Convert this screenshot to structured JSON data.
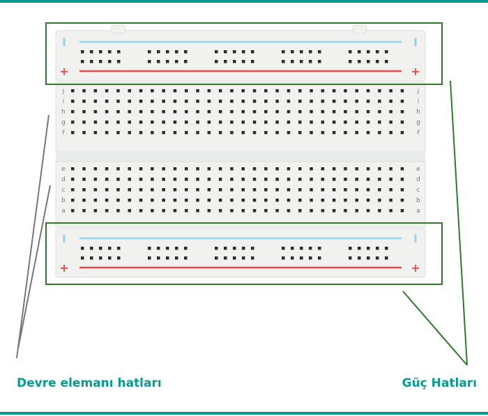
{
  "labels": {
    "circuit_lines": "Devre elemanı hatları",
    "power_lines": "Güç Hatları"
  },
  "rail_symbols": {
    "minus": "I",
    "plus": "+"
  },
  "row_letters_top": [
    "j",
    "i",
    "h",
    "g",
    "f"
  ],
  "row_letters_bottom": [
    "e",
    "d",
    "c",
    "b",
    "a"
  ],
  "colors": {
    "accent": "#079a8e",
    "highlight_box": "#2d7a2d",
    "pointer_line_green": "#2d7a2d",
    "pointer_line_gray": "#777777",
    "rail_blue": "#8fd3ee",
    "rail_red": "#ee4a4a",
    "board": "#f1f1ef",
    "hole": "#2b2b2b"
  },
  "icons": {
    "rail_minus": "minus-sign",
    "rail_plus": "plus-sign"
  }
}
